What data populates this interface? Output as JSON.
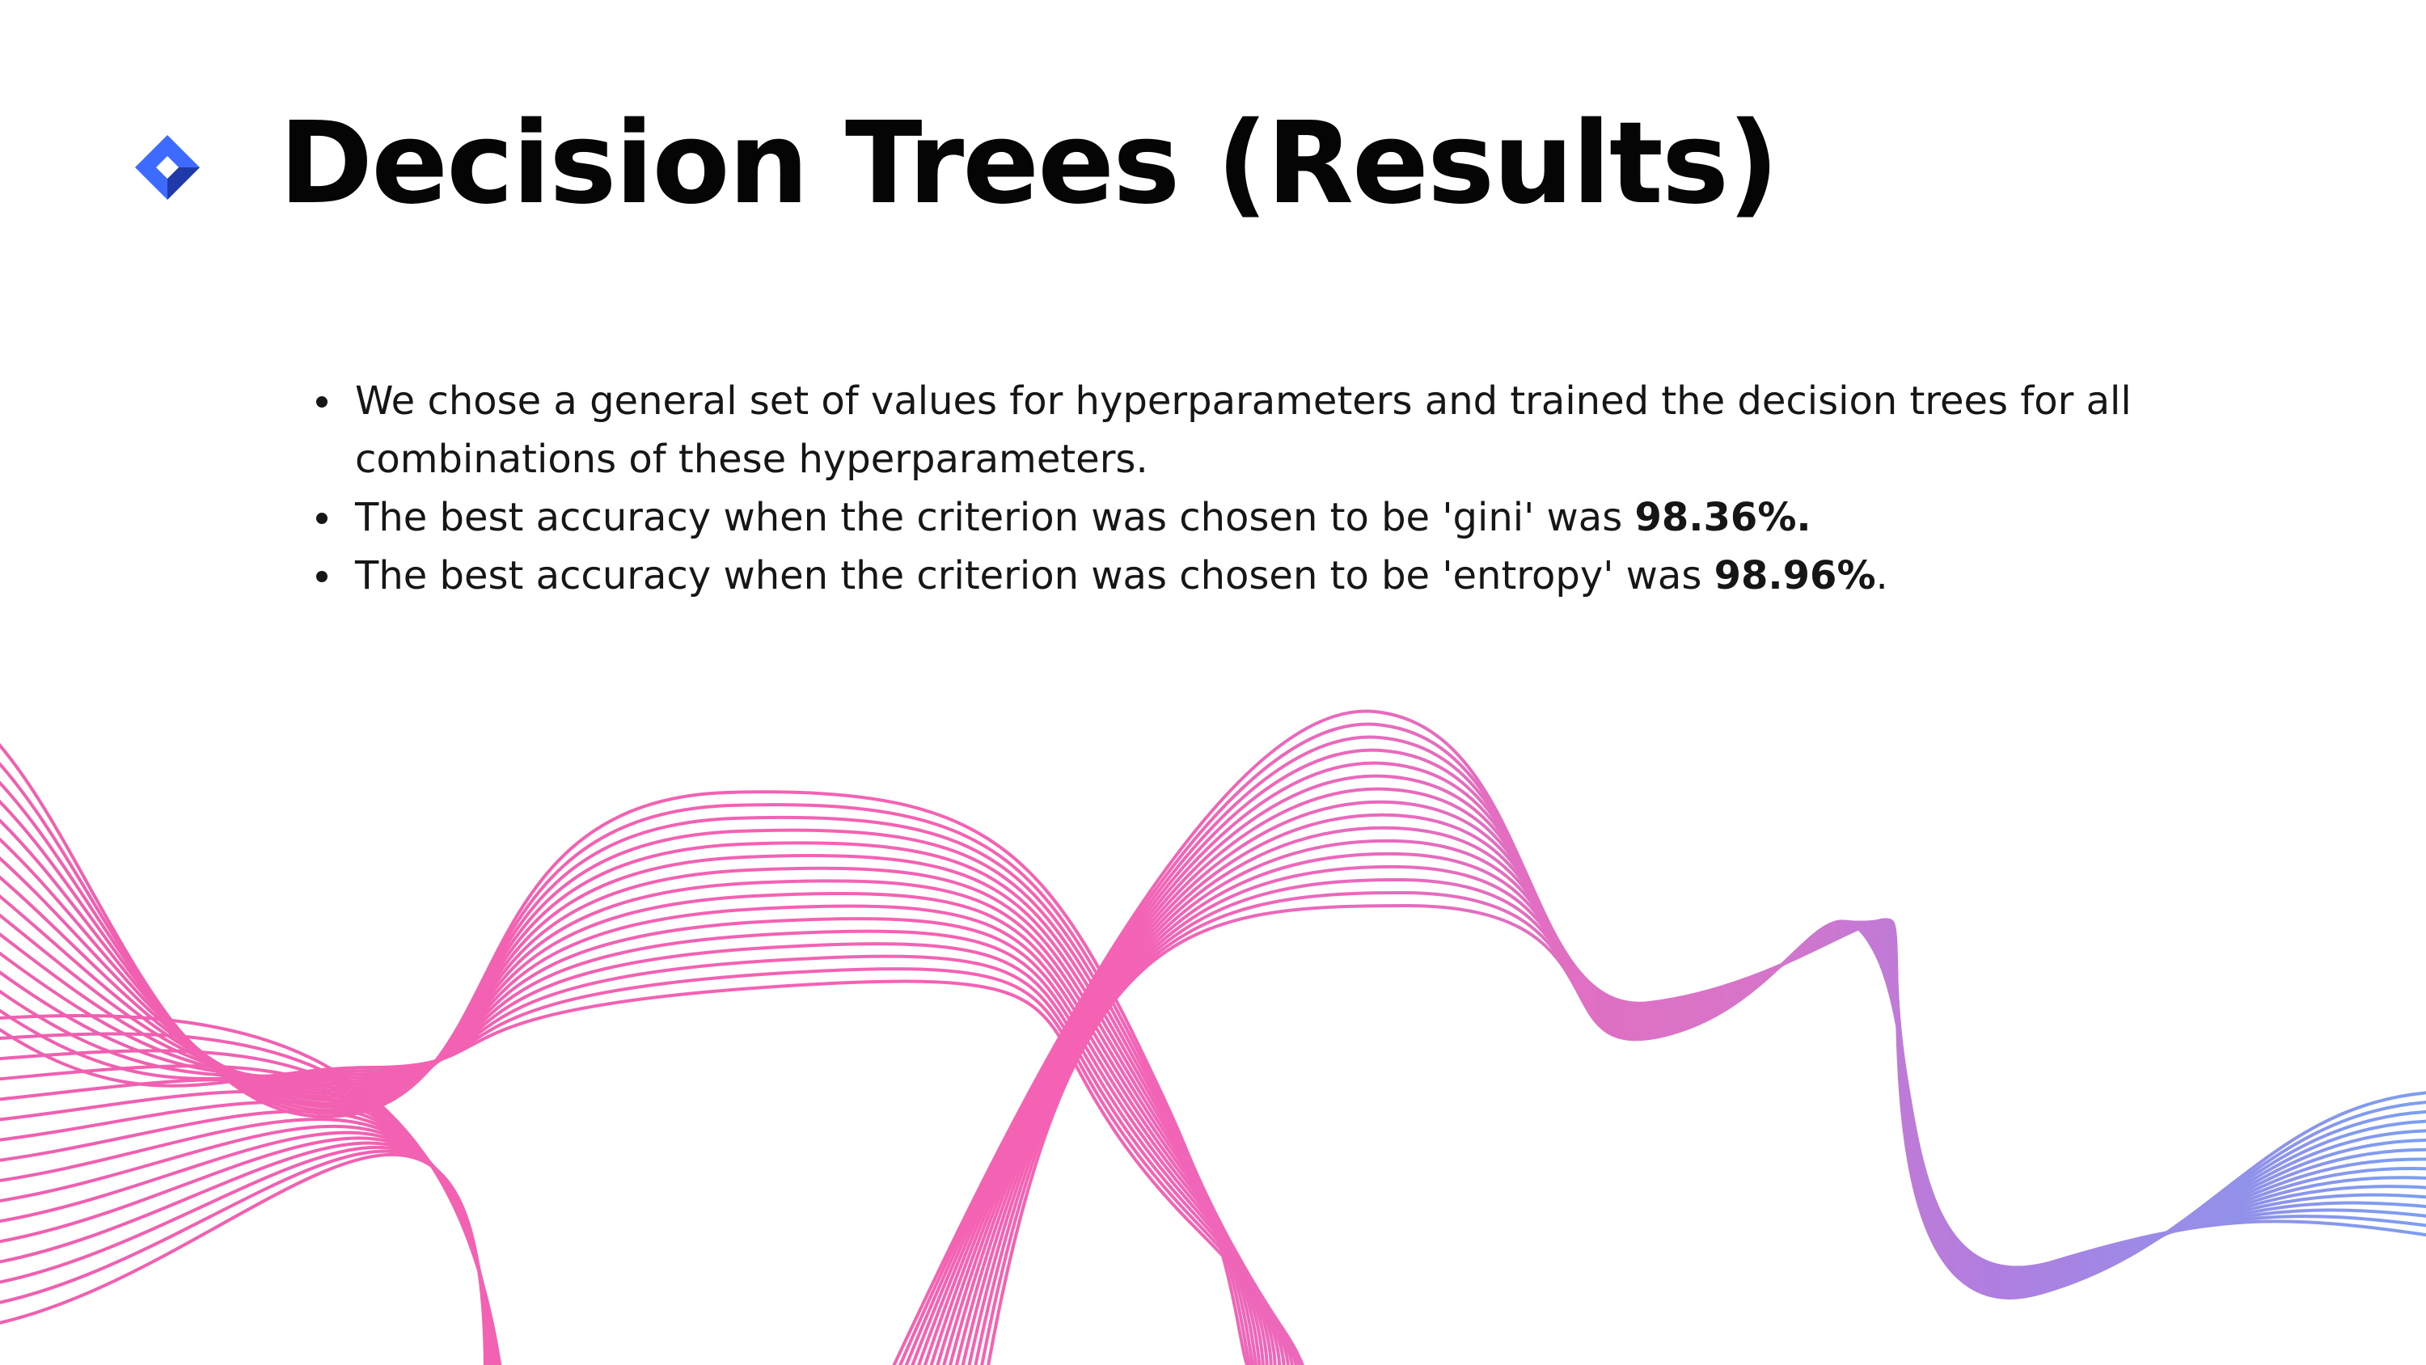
{
  "slide": {
    "title": "Decision Trees (Results)",
    "bullets": [
      {
        "text": "We chose a general set of values for hyperparameters and trained the decision trees for all combinations of these hyperparameters.",
        "highlight": "",
        "suffix": ""
      },
      {
        "text": "The best accuracy when the criterion was chosen to be 'gini' was ",
        "highlight": "98.36%.",
        "suffix": ""
      },
      {
        "text": "The best accuracy when the criterion was chosen to be 'entropy' was ",
        "highlight": "98.96%",
        "suffix": "."
      }
    ]
  },
  "colors": {
    "logo_light": "#3d6bff",
    "logo_dark": "#1f3aa8",
    "wave_pink": "#f060b0",
    "wave_purple": "#b07ee0",
    "wave_blue": "#7b9ff0"
  },
  "icons": {
    "logo": "diamond-logo-icon"
  }
}
